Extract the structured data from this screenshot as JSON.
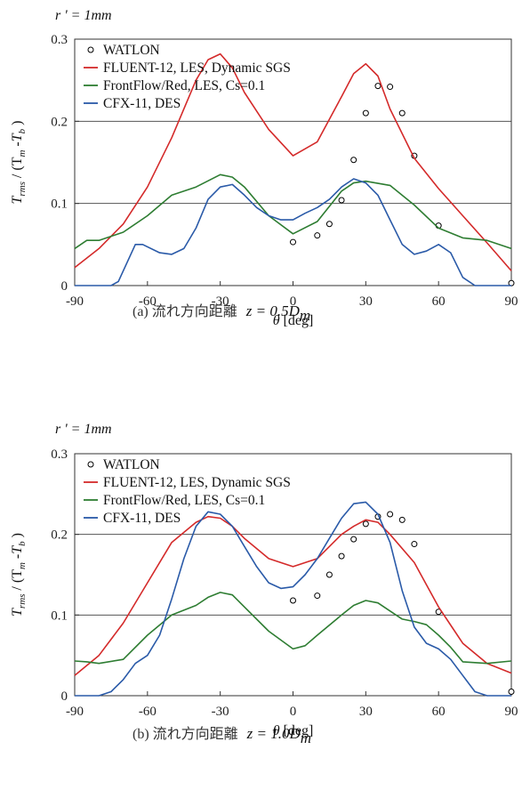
{
  "chart_data": [
    {
      "type": "line",
      "panel_note": "r ' = 1mm",
      "caption_prefix": "(a) 流れ方向距離",
      "caption_var": "z = 0.5D",
      "caption_sub": "m",
      "ylabel_main": "T",
      "ylabel_sub": "rms",
      "ylabel_rest": " / (T",
      "ylabel_sub2": "m",
      "ylabel_mid": " -T",
      "ylabel_sub3": "b",
      "ylabel_end": " )",
      "xlabel_sym": "θ",
      "xlabel_unit": " [deg]",
      "xlim": [
        -90,
        90
      ],
      "ylim": [
        0,
        0.3
      ],
      "xticks": [
        "-90",
        "-60",
        "-30",
        "0",
        "30",
        "60",
        "90"
      ],
      "yticks": [
        "0",
        "0.1",
        "0.2",
        "0.3"
      ],
      "gridlines_y": [
        0.1,
        0.2
      ],
      "series": [
        {
          "name": "WATLON",
          "kind": "scatter",
          "color": "#000000",
          "x": [
            0,
            10,
            15,
            20,
            25,
            30,
            35,
            40,
            45,
            50,
            60,
            90
          ],
          "y": [
            0.053,
            0.061,
            0.075,
            0.104,
            0.153,
            0.21,
            0.243,
            0.242,
            0.21,
            0.158,
            0.073,
            0.003
          ]
        },
        {
          "name": "FLUENT-12, LES, Dynamic SGS",
          "kind": "line",
          "color": "#d42a2a",
          "x": [
            -90,
            -80,
            -70,
            -60,
            -50,
            -40,
            -35,
            -30,
            -25,
            -20,
            -10,
            0,
            10,
            20,
            25,
            30,
            35,
            40,
            50,
            60,
            70,
            80,
            90
          ],
          "y": [
            0.022,
            0.045,
            0.075,
            0.12,
            0.18,
            0.25,
            0.275,
            0.282,
            0.265,
            0.235,
            0.19,
            0.158,
            0.175,
            0.23,
            0.258,
            0.27,
            0.255,
            0.215,
            0.155,
            0.118,
            0.085,
            0.052,
            0.018
          ]
        },
        {
          "name": "FrontFlow/Red, LES, Cs=0.1",
          "kind": "line",
          "color": "#2e7d32",
          "x": [
            -90,
            -85,
            -80,
            -70,
            -60,
            -50,
            -40,
            -30,
            -25,
            -20,
            -10,
            0,
            10,
            20,
            25,
            30,
            40,
            50,
            60,
            70,
            80,
            90
          ],
          "y": [
            0.045,
            0.055,
            0.055,
            0.065,
            0.085,
            0.11,
            0.12,
            0.135,
            0.132,
            0.12,
            0.085,
            0.063,
            0.078,
            0.115,
            0.125,
            0.127,
            0.122,
            0.098,
            0.07,
            0.058,
            0.055,
            0.045
          ]
        },
        {
          "name": "CFX-11, DES",
          "kind": "line",
          "color": "#2a5aa8",
          "x": [
            -90,
            -75,
            -72,
            -65,
            -62,
            -55,
            -50,
            -45,
            -40,
            -35,
            -30,
            -25,
            -20,
            -15,
            -10,
            -5,
            0,
            5,
            10,
            15,
            20,
            25,
            30,
            35,
            40,
            45,
            50,
            55,
            60,
            65,
            70,
            75,
            90
          ],
          "y": [
            0,
            0,
            0.005,
            0.05,
            0.05,
            0.04,
            0.038,
            0.045,
            0.07,
            0.105,
            0.12,
            0.123,
            0.11,
            0.095,
            0.085,
            0.08,
            0.08,
            0.088,
            0.095,
            0.105,
            0.12,
            0.13,
            0.125,
            0.11,
            0.08,
            0.05,
            0.038,
            0.042,
            0.05,
            0.04,
            0.01,
            0,
            0
          ]
        }
      ]
    },
    {
      "type": "line",
      "panel_note": "r ' = 1mm",
      "caption_prefix": "(b) 流れ方向距離",
      "caption_var": "z = 1.0D",
      "caption_sub": "m",
      "ylabel_main": "T",
      "ylabel_sub": "rms",
      "ylabel_rest": " / (T",
      "ylabel_sub2": "m",
      "ylabel_mid": " -T",
      "ylabel_sub3": "b",
      "ylabel_end": " )",
      "xlabel_sym": "θ",
      "xlabel_unit": " [deg]",
      "xlim": [
        -90,
        90
      ],
      "ylim": [
        0,
        0.3
      ],
      "xticks": [
        "-90",
        "-60",
        "-30",
        "0",
        "30",
        "60",
        "90"
      ],
      "yticks": [
        "0",
        "0.1",
        "0.2",
        "0.3"
      ],
      "gridlines_y": [
        0.1,
        0.2
      ],
      "series": [
        {
          "name": "WATLON",
          "kind": "scatter",
          "color": "#000000",
          "x": [
            0,
            10,
            15,
            20,
            25,
            30,
            35,
            40,
            45,
            50,
            60,
            90
          ],
          "y": [
            0.118,
            0.124,
            0.15,
            0.173,
            0.194,
            0.213,
            0.222,
            0.225,
            0.218,
            0.188,
            0.104,
            0.005
          ]
        },
        {
          "name": "FLUENT-12, LES, Dynamic SGS",
          "kind": "line",
          "color": "#d42a2a",
          "x": [
            -90,
            -80,
            -70,
            -60,
            -50,
            -40,
            -35,
            -30,
            -25,
            -20,
            -10,
            0,
            10,
            20,
            25,
            30,
            35,
            40,
            50,
            60,
            70,
            80,
            90
          ],
          "y": [
            0.025,
            0.05,
            0.09,
            0.14,
            0.19,
            0.215,
            0.222,
            0.22,
            0.21,
            0.195,
            0.17,
            0.16,
            0.17,
            0.2,
            0.21,
            0.218,
            0.215,
            0.2,
            0.165,
            0.11,
            0.065,
            0.04,
            0.028
          ]
        },
        {
          "name": "FrontFlow/Red, LES, Cs=0.1",
          "kind": "line",
          "color": "#2e7d32",
          "x": [
            -90,
            -85,
            -80,
            -70,
            -60,
            -50,
            -40,
            -35,
            -30,
            -25,
            -20,
            -10,
            0,
            5,
            10,
            20,
            25,
            30,
            35,
            40,
            45,
            50,
            55,
            60,
            65,
            70,
            80,
            90
          ],
          "y": [
            0.043,
            0.042,
            0.04,
            0.045,
            0.075,
            0.1,
            0.112,
            0.122,
            0.128,
            0.125,
            0.11,
            0.08,
            0.058,
            0.062,
            0.075,
            0.1,
            0.112,
            0.118,
            0.115,
            0.105,
            0.095,
            0.092,
            0.088,
            0.075,
            0.06,
            0.042,
            0.04,
            0.043
          ]
        },
        {
          "name": "CFX-11, DES",
          "kind": "line",
          "color": "#2a5aa8",
          "x": [
            -90,
            -80,
            -75,
            -70,
            -65,
            -60,
            -55,
            -50,
            -45,
            -40,
            -35,
            -30,
            -25,
            -20,
            -15,
            -10,
            -5,
            0,
            5,
            10,
            15,
            20,
            25,
            30,
            35,
            40,
            45,
            50,
            55,
            60,
            65,
            70,
            75,
            80,
            90
          ],
          "y": [
            0,
            0,
            0.005,
            0.02,
            0.04,
            0.05,
            0.075,
            0.12,
            0.17,
            0.21,
            0.228,
            0.225,
            0.21,
            0.185,
            0.16,
            0.14,
            0.133,
            0.135,
            0.15,
            0.17,
            0.195,
            0.22,
            0.238,
            0.24,
            0.225,
            0.19,
            0.13,
            0.085,
            0.065,
            0.058,
            0.045,
            0.025,
            0.005,
            0,
            0
          ]
        }
      ]
    }
  ]
}
